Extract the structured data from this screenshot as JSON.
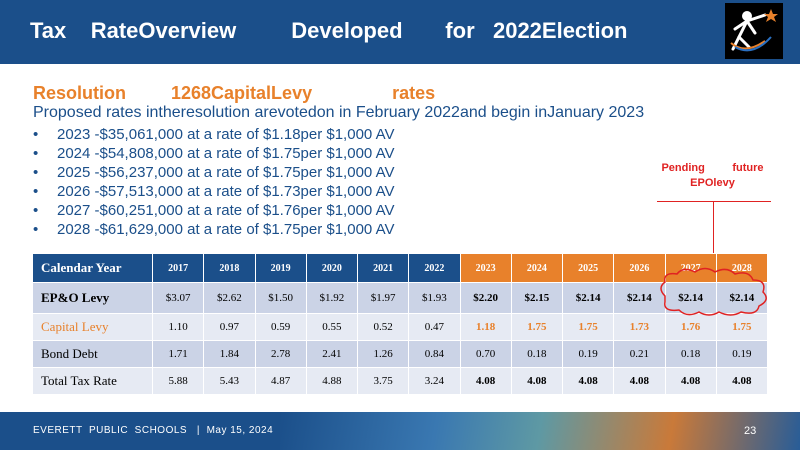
{
  "header": {
    "title": "Tax    RateOverview         Developed       for   2022Election"
  },
  "section": {
    "title": "Resolution         1268CapitalLevy                rates",
    "subtitle": "Proposed rates intheresolution arevotedon in February 2022and begin inJanuary 2023",
    "bullets": [
      "2023 -$35,061,000  at a rate of $1.18per $1,000 AV",
      "2024 -$54,808,000  at a rate of $1.75per $1,000 AV",
      "2025 -$56,237,000  at a rate of $1.75per $1,000 AV",
      "2026 -$57,513,000  at a rate of $1.73per $1,000 AV",
      "2027 -$60,251,000  at a rate of $1.76per $1,000 AV",
      "2028 -$61,629,000  at a rate of $1.75per $1,000 AV"
    ]
  },
  "annotation": {
    "line1": "Pending         future",
    "line2": "EPOlevy"
  },
  "table": {
    "header_label": "Calendar   Year",
    "years": [
      "2017",
      "2018",
      "2019",
      "2020",
      "2021",
      "2022",
      "2023",
      "2024",
      "2025",
      "2026",
      "2027",
      "2028"
    ],
    "rows": [
      {
        "label": "EP&O Levy",
        "values": [
          "$3.07",
          "$2.62",
          "$1.50",
          "$1.92",
          "$1.97",
          "$1.93",
          "$2.20",
          "$2.15",
          "$2.14",
          "$2.14",
          "$2.14",
          "$2.14"
        ]
      },
      {
        "label": "Capital  Levy",
        "values": [
          "1.10",
          "0.97",
          "0.59",
          "0.55",
          "0.52",
          "0.47",
          "1.18",
          "1.75",
          "1.75",
          "1.73",
          "1.76",
          "1.75"
        ]
      },
      {
        "label": "Bond Debt",
        "values": [
          "1.71",
          "1.84",
          "2.78",
          "2.41",
          "1.26",
          "0.84",
          "0.70",
          "0.18",
          "0.19",
          "0.21",
          "0.18",
          "0.19"
        ]
      },
      {
        "label": "Total Tax Rate",
        "values": [
          "5.88",
          "5.43",
          "4.87",
          "4.88",
          "3.75",
          "3.24",
          "4.08",
          "4.08",
          "4.08",
          "4.08",
          "4.08",
          "4.08"
        ]
      }
    ]
  },
  "footer": {
    "text": "EVERETT  PUBLIC  SCHOOLS   |  May 15, 2024",
    "page": "23"
  },
  "colors": {
    "brand_blue": "#1b4f8a",
    "accent_orange": "#e8812b",
    "annotation_red": "#e02222"
  },
  "icons": {
    "logo": "district-logo-icon"
  }
}
